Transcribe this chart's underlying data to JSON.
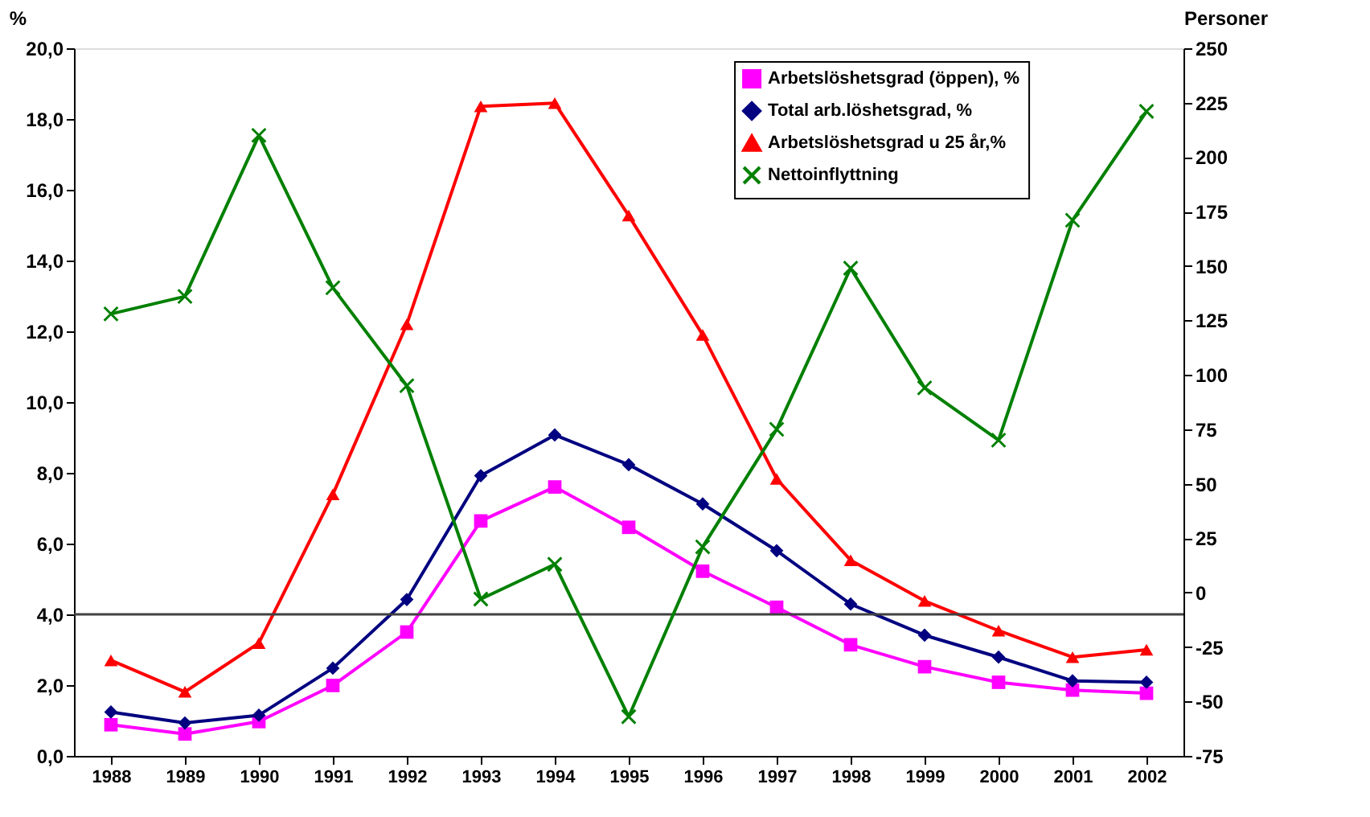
{
  "chart_data": {
    "type": "line",
    "categories": [
      "1988",
      "1989",
      "1990",
      "1991",
      "1992",
      "1993",
      "1994",
      "1995",
      "1996",
      "1997",
      "1998",
      "1999",
      "2000",
      "2001",
      "2002"
    ],
    "series": [
      {
        "name": "Arbetslöshetsgrad (öppen), %",
        "color": "#ff00ff",
        "marker": "square",
        "values": [
          0.88,
          0.62,
          0.97,
          1.99,
          3.5,
          6.64,
          7.6,
          6.46,
          5.22,
          4.2,
          3.14,
          2.52,
          2.08,
          1.86,
          1.77
        ]
      },
      {
        "name": "Total arb.löshetsgrad, %",
        "color": "#000080",
        "marker": "diamond",
        "values": [
          1.24,
          0.93,
          1.15,
          2.48,
          4.42,
          7.92,
          9.07,
          8.23,
          7.12,
          5.8,
          4.29,
          3.41,
          2.79,
          2.12,
          2.08
        ]
      },
      {
        "name": "Arbetslöshetsgrad u 25 år,%",
        "color": "#ff0000",
        "marker": "triangle",
        "values": [
          2.7,
          1.81,
          3.19,
          7.39,
          12.2,
          18.36,
          18.45,
          15.27,
          11.9,
          7.83,
          5.53,
          4.38,
          3.54,
          2.79,
          3.0
        ]
      },
      {
        "name": "Nettoinflyttning",
        "color": "#008000",
        "marker": "cross",
        "axis": "y2",
        "values": [
          128,
          136,
          210,
          140,
          95,
          -3,
          13,
          -57,
          21,
          75,
          149,
          94,
          70,
          171,
          221
        ]
      }
    ],
    "ylabel": "%",
    "y2label": "Personer",
    "ylim": [
      0,
      20
    ],
    "yticks": [
      {
        "value": 0,
        "label": "0,0"
      },
      {
        "value": 2,
        "label": "2,0"
      },
      {
        "value": 4,
        "label": "4,0"
      },
      {
        "value": 6,
        "label": "6,0"
      },
      {
        "value": 8,
        "label": "8,0"
      },
      {
        "value": 10,
        "label": "10,0"
      },
      {
        "value": 12,
        "label": "12,0"
      },
      {
        "value": 14,
        "label": "14,0"
      },
      {
        "value": 16,
        "label": "16,0"
      },
      {
        "value": 18,
        "label": "18,0"
      },
      {
        "value": 20,
        "label": "20,0"
      }
    ],
    "y2lim": [
      -75,
      250
    ],
    "y2ticks": [
      -75,
      -50,
      -25,
      0,
      25,
      50,
      75,
      100,
      125,
      150,
      175,
      200,
      225,
      250
    ],
    "ref_lines": [
      {
        "axis": "y",
        "value": 4,
        "color": "#404040"
      }
    ],
    "legend": "top right",
    "grid": false,
    "line_style": "solid"
  }
}
